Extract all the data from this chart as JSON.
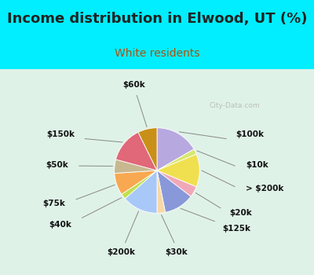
{
  "title": "Income distribution in Elwood, UT (%)",
  "subtitle": "White residents",
  "background_top": "#00eeff",
  "background_chart": "#dff2e8",
  "labels": [
    "$100k",
    "$10k",
    "> $200k",
    "$20k",
    "$125k",
    "$30k",
    "$200k",
    "$40k",
    "$75k",
    "$50k",
    "$150k",
    "$60k"
  ],
  "values": [
    16,
    2,
    12,
    4,
    11,
    3,
    13,
    2,
    8,
    5,
    13,
    7
  ],
  "colors": [
    "#b8a8e0",
    "#d8e870",
    "#f0e050",
    "#f0a8b8",
    "#8898d8",
    "#f8d8a8",
    "#a8c8f8",
    "#c0e050",
    "#f8a850",
    "#c8b890",
    "#e06878",
    "#c89018"
  ],
  "title_fontsize": 13,
  "subtitle_fontsize": 10,
  "label_fontsize": 7.5,
  "title_color": "#222222",
  "subtitle_color": "#b05010"
}
